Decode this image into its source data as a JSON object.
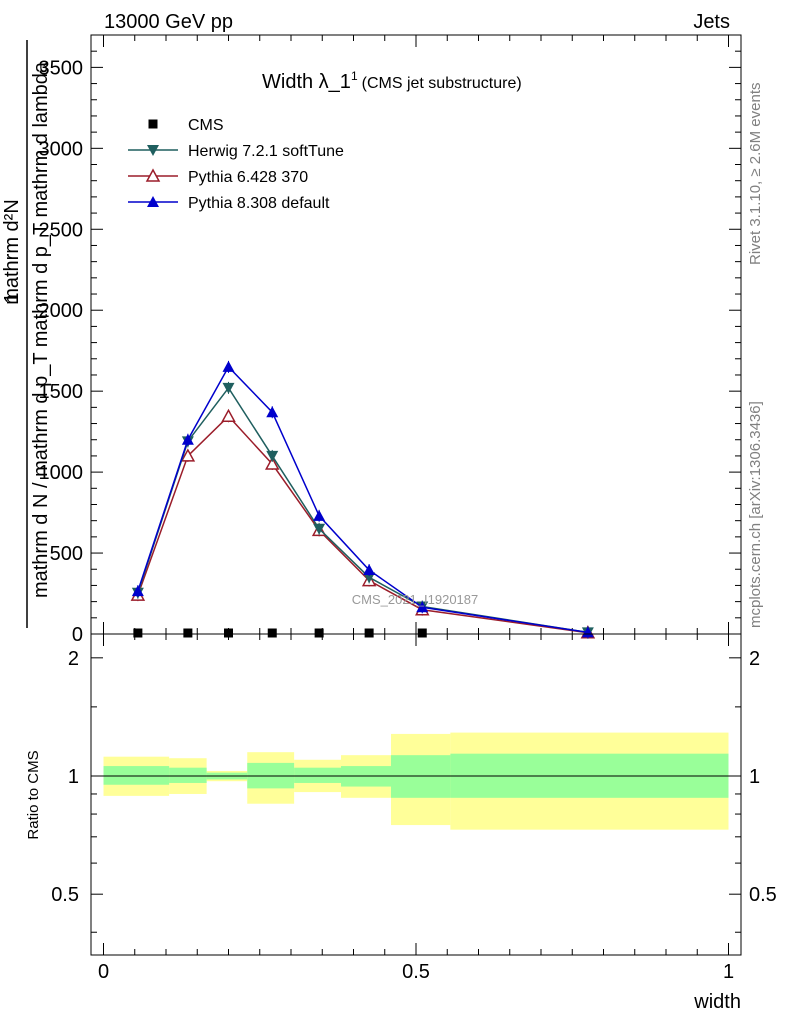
{
  "header": {
    "left": "13000 GeV pp",
    "right": "Jets"
  },
  "side_labels": {
    "rivet": "Rivet 3.1.10, ≥ 2.6M events",
    "mcplots": "mcplots.cern.ch [arXiv:1306.3436]"
  },
  "colors": {
    "cms": "#000000",
    "herwig": "#1f5f5f",
    "pythia6": "#9b1d2a",
    "pythia8": "#0000cc",
    "band_outer": "#ffff99",
    "band_inner": "#99ff99"
  },
  "chart_data": [
    {
      "type": "line",
      "title_main": "Width λ_1",
      "title_sup": "1",
      "title_sub": "(CMS jet substructure)",
      "ylabel_num": "mathrm d²N",
      "ylabel_num_prefix": "1",
      "ylabel_den": "mathrm d N / mathrm d p_T mathrm d p_T mathrm d lambda",
      "ylim": [
        0,
        3700
      ],
      "xlim": [
        -0.02,
        1.02
      ],
      "yticks": [
        0,
        500,
        1000,
        1500,
        2000,
        2500,
        3000,
        3500
      ],
      "ytick_labels": [
        "0",
        "500",
        "1000",
        "1500",
        "2000",
        "2500",
        "3000",
        "3500"
      ],
      "watermark": "CMS_2021_I1920187",
      "legend_position": "top-left",
      "series": [
        {
          "name": "CMS",
          "key": "cms",
          "marker": "square",
          "x": [
            0.055,
            0.135,
            0.2,
            0.27,
            0.345,
            0.425,
            0.51
          ],
          "y": [
            3,
            3,
            3,
            3,
            3,
            3,
            3
          ]
        },
        {
          "name": "Herwig 7.2.1 softTune",
          "key": "herwig",
          "marker": "triangle-down",
          "x": [
            0.055,
            0.135,
            0.2,
            0.27,
            0.345,
            0.425,
            0.51,
            0.775
          ],
          "y": [
            255,
            1190,
            1520,
            1100,
            650,
            350,
            170,
            10
          ]
        },
        {
          "name": "Pythia 6.428 370",
          "key": "pythia6",
          "marker": "triangle-up-open",
          "x": [
            0.055,
            0.135,
            0.2,
            0.27,
            0.345,
            0.425,
            0.51,
            0.775
          ],
          "y": [
            240,
            1100,
            1345,
            1050,
            640,
            330,
            150,
            8
          ]
        },
        {
          "name": "Pythia 8.308 default",
          "key": "pythia8",
          "marker": "triangle-up",
          "x": [
            0.055,
            0.135,
            0.2,
            0.27,
            0.345,
            0.425,
            0.51,
            0.775
          ],
          "y": [
            265,
            1200,
            1650,
            1370,
            730,
            395,
            165,
            10
          ]
        }
      ]
    },
    {
      "type": "area",
      "ylabel": "Ratio to CMS",
      "xlabel": "width",
      "ylim": [
        0.35,
        2.3
      ],
      "xlim": [
        -0.02,
        1.02
      ],
      "log_y": true,
      "yticks": [
        0.5,
        1,
        2
      ],
      "ytick_labels": [
        "0.5",
        "1",
        "2"
      ],
      "xticks": [
        0,
        0.5,
        1
      ],
      "xtick_labels": [
        "0",
        "0.5",
        "1"
      ],
      "bins": [
        {
          "x0": 0.0,
          "x1": 0.105,
          "outer": [
            0.89,
            1.12
          ],
          "inner": [
            0.95,
            1.06
          ]
        },
        {
          "x0": 0.105,
          "x1": 0.165,
          "outer": [
            0.9,
            1.11
          ],
          "inner": [
            0.96,
            1.05
          ]
        },
        {
          "x0": 0.165,
          "x1": 0.23,
          "outer": [
            0.97,
            1.03
          ],
          "inner": [
            0.98,
            1.02
          ]
        },
        {
          "x0": 0.23,
          "x1": 0.305,
          "outer": [
            0.85,
            1.15
          ],
          "inner": [
            0.93,
            1.08
          ]
        },
        {
          "x0": 0.305,
          "x1": 0.38,
          "outer": [
            0.91,
            1.1
          ],
          "inner": [
            0.96,
            1.05
          ]
        },
        {
          "x0": 0.38,
          "x1": 0.46,
          "outer": [
            0.88,
            1.13
          ],
          "inner": [
            0.94,
            1.06
          ]
        },
        {
          "x0": 0.46,
          "x1": 0.555,
          "outer": [
            0.75,
            1.28
          ],
          "inner": [
            0.88,
            1.13
          ]
        },
        {
          "x0": 0.555,
          "x1": 1.0,
          "outer": [
            0.73,
            1.29
          ],
          "inner": [
            0.88,
            1.14
          ]
        }
      ]
    }
  ]
}
